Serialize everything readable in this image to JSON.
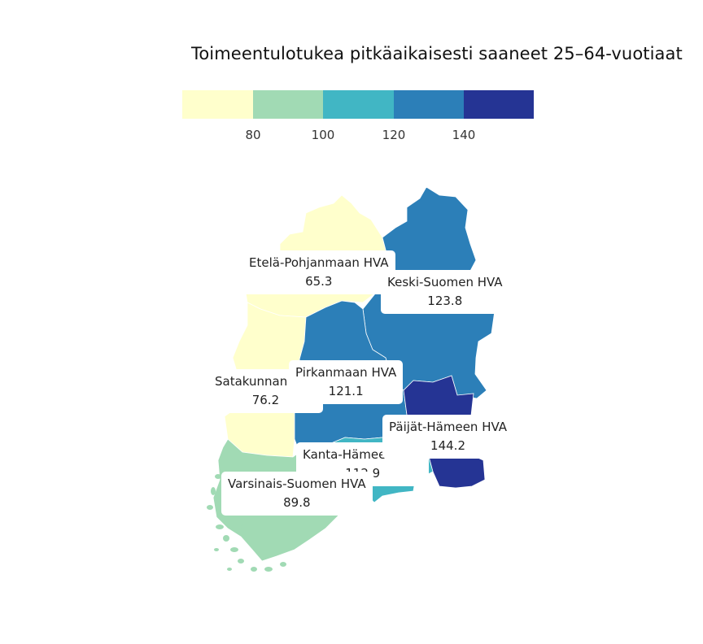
{
  "title": "Toimeentulotukea pitkäaikaisesti saaneet 25–64-vuotiaat",
  "legend": {
    "ticks": [
      "80",
      "100",
      "120",
      "140"
    ],
    "colors": [
      "#ffffcc",
      "#a1dab4",
      "#41b6c4",
      "#2c7fb8",
      "#253494"
    ]
  },
  "chart_data": {
    "type": "choropleth",
    "title": "Toimeentulotukea pitkäaikaisesti saaneet 25–64-vuotiaat",
    "bins": [
      80,
      100,
      120,
      140
    ],
    "regions": [
      {
        "name": "Etelä-Pohjanmaan HVA",
        "value": 65.3
      },
      {
        "name": "Keski-Suomen HVA",
        "value": 123.8
      },
      {
        "name": "Satakunnan HVA",
        "value": 76.2
      },
      {
        "name": "Pirkanmaan HVA",
        "value": 121.1
      },
      {
        "name": "Päijät-Hämeen HVA",
        "value": 144.2
      },
      {
        "name": "Kanta-Hämeen HVA",
        "value": 112.9
      },
      {
        "name": "Varsinais-Suomen HVA",
        "value": 89.8
      }
    ]
  },
  "labels": {
    "etela_pohjanmaa": {
      "name": "Etelä-Pohjanmaan HVA",
      "value": "65.3"
    },
    "keski_suomi": {
      "name": "Keski-Suomen HVA",
      "value": "123.8"
    },
    "satakunta": {
      "name": "Satakunnan HVA",
      "value": "76.2"
    },
    "pirkanmaa": {
      "name": "Pirkanmaan HVA",
      "value": "121.1"
    },
    "paijat_hame": {
      "name": "Päijät-Hämeen HVA",
      "value": "144.2"
    },
    "kanta_hame": {
      "name": "Kanta-Hämeen HVA",
      "value": "112.9"
    },
    "varsinais_suomi": {
      "name": "Varsinais-Suomen HVA",
      "value": "89.8"
    }
  }
}
